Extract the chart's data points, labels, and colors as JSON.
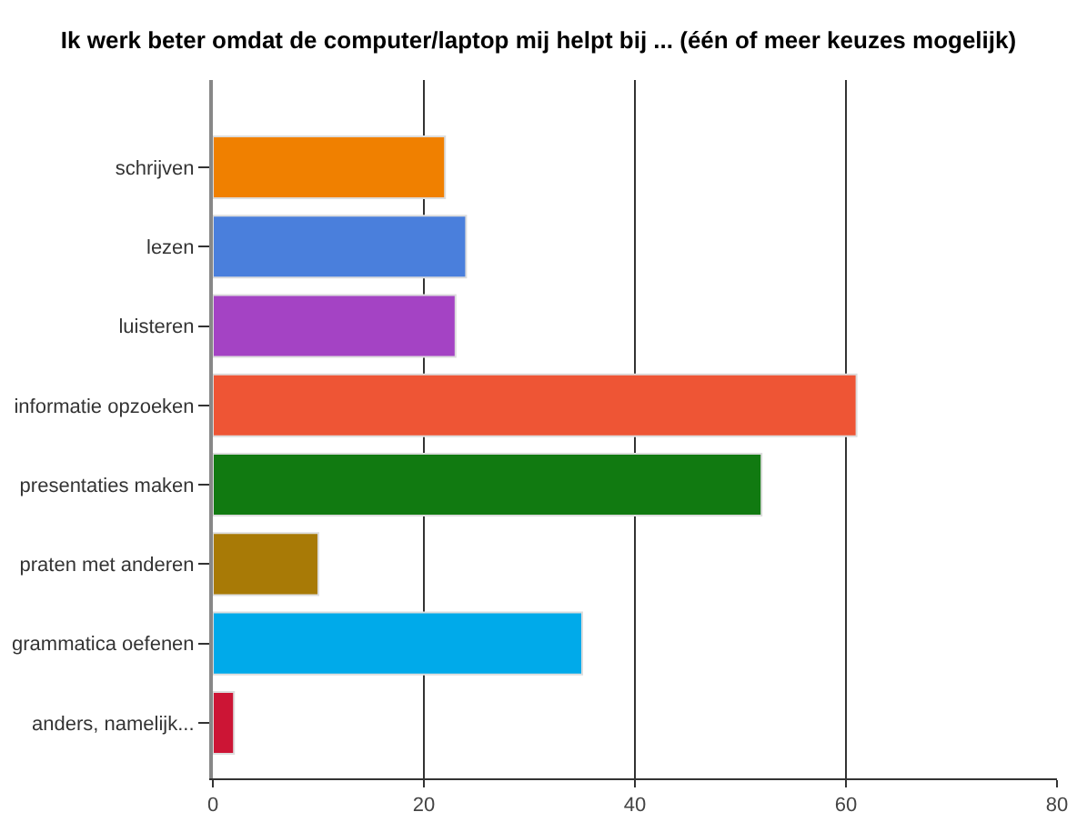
{
  "chart_data": {
    "type": "bar",
    "orientation": "horizontal",
    "title": "Ik werk beter omdat de computer/laptop mij helpt bij ... (één of meer keuzes mogelijk)",
    "categories": [
      "schrijven",
      "lezen",
      "luisteren",
      "informatie opzoeken",
      "presentaties maken",
      "praten met anderen",
      "grammatica oefenen",
      "anders, namelijk..."
    ],
    "values": [
      22,
      24,
      23,
      61,
      52,
      10,
      35,
      2
    ],
    "colors": [
      "#f08000",
      "#4a7fdc",
      "#a443c4",
      "#ee5535",
      "#117a11",
      "#a87a06",
      "#00aaea",
      "#cc1535"
    ],
    "xlim": [
      0,
      80
    ],
    "xticks": [
      0,
      20,
      40,
      60,
      80
    ],
    "grid": "x"
  }
}
